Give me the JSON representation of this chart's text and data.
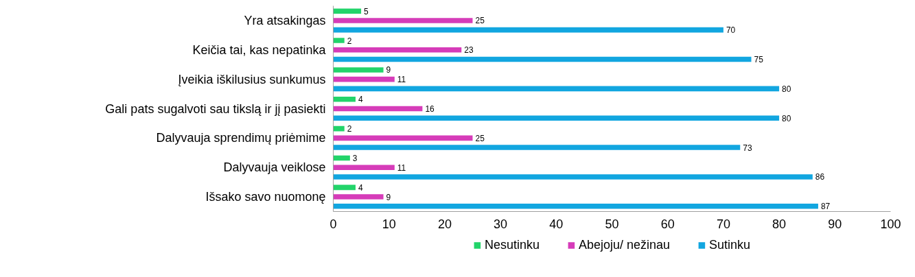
{
  "chart_data": {
    "type": "bar",
    "orientation": "horizontal",
    "categories": [
      "Yra atsakingas",
      "Keičia tai, kas nepatinka",
      "Įveikia iškilusius sunkumus",
      "Gali pats sugalvoti sau tikslą ir jį pasiekti",
      "Dalyvauja sprendimų priėmime",
      "Dalyvauja veiklose",
      "Išsako savo nuomonę"
    ],
    "series": [
      {
        "name": "Nesutinku",
        "color": "#22d46a",
        "values": [
          5,
          2,
          9,
          4,
          2,
          3,
          4
        ]
      },
      {
        "name": "Abejoju/ nežinau",
        "color": "#d63cb9",
        "values": [
          25,
          23,
          11,
          16,
          25,
          11,
          9
        ]
      },
      {
        "name": "Sutinku",
        "color": "#12a6e0",
        "values": [
          70,
          75,
          80,
          80,
          73,
          86,
          87
        ]
      }
    ],
    "xlim": [
      0,
      100
    ],
    "xticks": [
      0,
      10,
      20,
      30,
      40,
      50,
      60,
      70,
      80,
      90,
      100
    ],
    "data_labels": true,
    "grid": false,
    "legend": "bottom"
  }
}
